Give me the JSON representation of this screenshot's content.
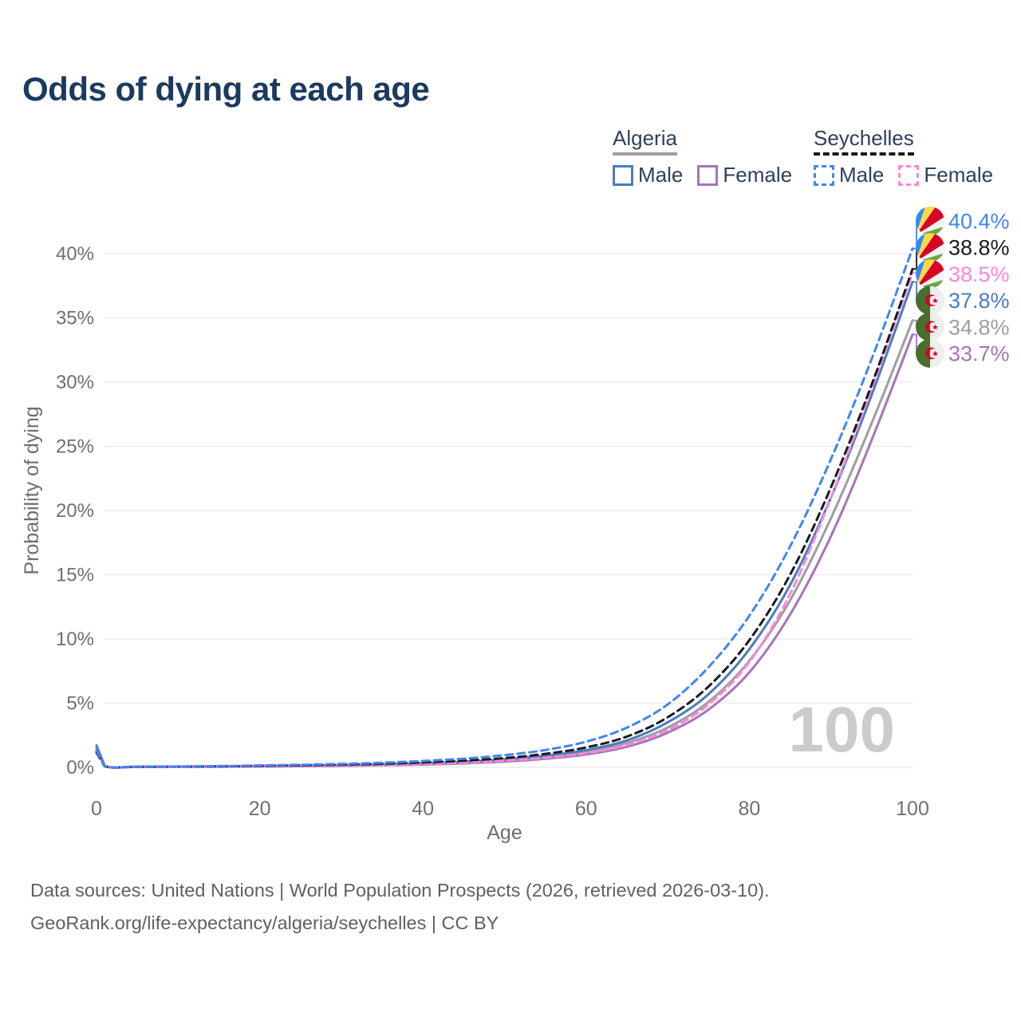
{
  "title": "Odds of dying at each age",
  "legend": {
    "algeria": {
      "label": "Algeria",
      "male": "Male",
      "female": "Female"
    },
    "seychelles": {
      "label": "Seychelles",
      "male": "Male",
      "female": "Female"
    }
  },
  "watermark": "100",
  "footer": {
    "line1": "Data sources: United Nations | World Population Prospects (2026, retrieved 2026-03-10).",
    "line2": "GeoRank.org/life-expectancy/algeria/seychelles | CC BY"
  },
  "colors": {
    "algeria_male": "#4a7cc0",
    "algeria_female": "#a873b8",
    "algeria_both": "#9e9e9e",
    "seychelles_male": "#4285f4",
    "seychelles_female": "#ff85dd",
    "seychelles_both": "#1a1a1a",
    "grid": "#ececec",
    "axis_text": "#6f6f6f",
    "title_text": "#1b3a5e",
    "watermark": "#cbcbcb",
    "flag_algeria_green": "#496e2d",
    "flag_algeria_white": "#eeeeee",
    "flag_red": "#d80027",
    "flag_sey_blue": "#338af3",
    "flag_sey_yellow": "#ffda44",
    "flag_sey_white": "#f3f3f3",
    "flag_sey_green": "#6da544"
  },
  "chart_data": {
    "type": "line",
    "title": "Odds of dying at each age",
    "xlabel": "Age",
    "ylabel": "Probability of dying",
    "x_ticks": [
      0,
      20,
      40,
      60,
      80,
      100
    ],
    "y_ticks_percent": [
      0,
      5,
      10,
      15,
      20,
      25,
      30,
      35,
      40
    ],
    "xlim": [
      0,
      100
    ],
    "ylim_percent": [
      0,
      43
    ],
    "grid": true,
    "legend_position": "top-right",
    "ages": [
      0,
      1,
      5,
      10,
      15,
      20,
      25,
      30,
      35,
      40,
      45,
      50,
      55,
      60,
      65,
      70,
      75,
      80,
      85,
      90,
      95,
      100
    ],
    "series": [
      {
        "id": "algeria_female",
        "name": "Algeria Female",
        "country": "algeria",
        "sex": "female",
        "style": "solid",
        "color": "#a873b8",
        "end_label": "33.7%",
        "values_percent": [
          1.4,
          0.1,
          0.04,
          0.04,
          0.05,
          0.07,
          0.09,
          0.12,
          0.16,
          0.22,
          0.31,
          0.45,
          0.67,
          1.0,
          1.6,
          2.7,
          4.5,
          7.4,
          11.9,
          18.0,
          25.5,
          33.7
        ]
      },
      {
        "id": "algeria_both",
        "name": "Algeria Both sexes",
        "country": "algeria",
        "sex": "both",
        "style": "solid",
        "color": "#9e9e9e",
        "end_label": "34.8%",
        "values_percent": [
          1.55,
          0.11,
          0.045,
          0.05,
          0.07,
          0.1,
          0.12,
          0.16,
          0.21,
          0.28,
          0.39,
          0.55,
          0.8,
          1.2,
          1.9,
          3.1,
          5.1,
          8.3,
          13.0,
          19.4,
          26.8,
          34.8
        ]
      },
      {
        "id": "algeria_male",
        "name": "Algeria Male",
        "country": "algeria",
        "sex": "male",
        "style": "solid",
        "color": "#4a7cc0",
        "end_label": "37.8%",
        "values_percent": [
          1.7,
          0.12,
          0.05,
          0.06,
          0.08,
          0.11,
          0.14,
          0.18,
          0.24,
          0.32,
          0.44,
          0.62,
          0.9,
          1.35,
          2.1,
          3.5,
          5.7,
          9.2,
          14.2,
          21.0,
          29.0,
          37.8
        ]
      },
      {
        "id": "seychelles_female",
        "name": "Seychelles Female",
        "country": "seychelles",
        "sex": "female",
        "style": "dashed",
        "color": "#ff85dd",
        "end_label": "38.5%",
        "values_percent": [
          1.1,
          0.08,
          0.04,
          0.05,
          0.06,
          0.08,
          0.11,
          0.15,
          0.2,
          0.27,
          0.37,
          0.52,
          0.75,
          1.1,
          1.75,
          2.9,
          4.9,
          8.2,
          13.5,
          21.0,
          29.5,
          38.5
        ]
      },
      {
        "id": "seychelles_both",
        "name": "Seychelles Both sexes",
        "country": "seychelles",
        "sex": "both",
        "style": "dashed",
        "color": "#1a1a1a",
        "end_label": "38.8%",
        "values_percent": [
          1.2,
          0.09,
          0.05,
          0.06,
          0.08,
          0.12,
          0.16,
          0.21,
          0.28,
          0.38,
          0.52,
          0.72,
          1.05,
          1.55,
          2.4,
          3.9,
          6.3,
          9.9,
          15.0,
          21.8,
          29.8,
          38.8
        ]
      },
      {
        "id": "seychelles_male",
        "name": "Seychelles Male",
        "country": "seychelles",
        "sex": "male",
        "style": "dashed",
        "color": "#4285f4",
        "end_label": "40.4%",
        "values_percent": [
          1.3,
          0.1,
          0.06,
          0.07,
          0.1,
          0.15,
          0.2,
          0.27,
          0.36,
          0.5,
          0.68,
          0.95,
          1.35,
          2.0,
          3.1,
          4.9,
          7.8,
          11.8,
          17.2,
          24.0,
          31.8,
          40.4
        ]
      }
    ]
  }
}
